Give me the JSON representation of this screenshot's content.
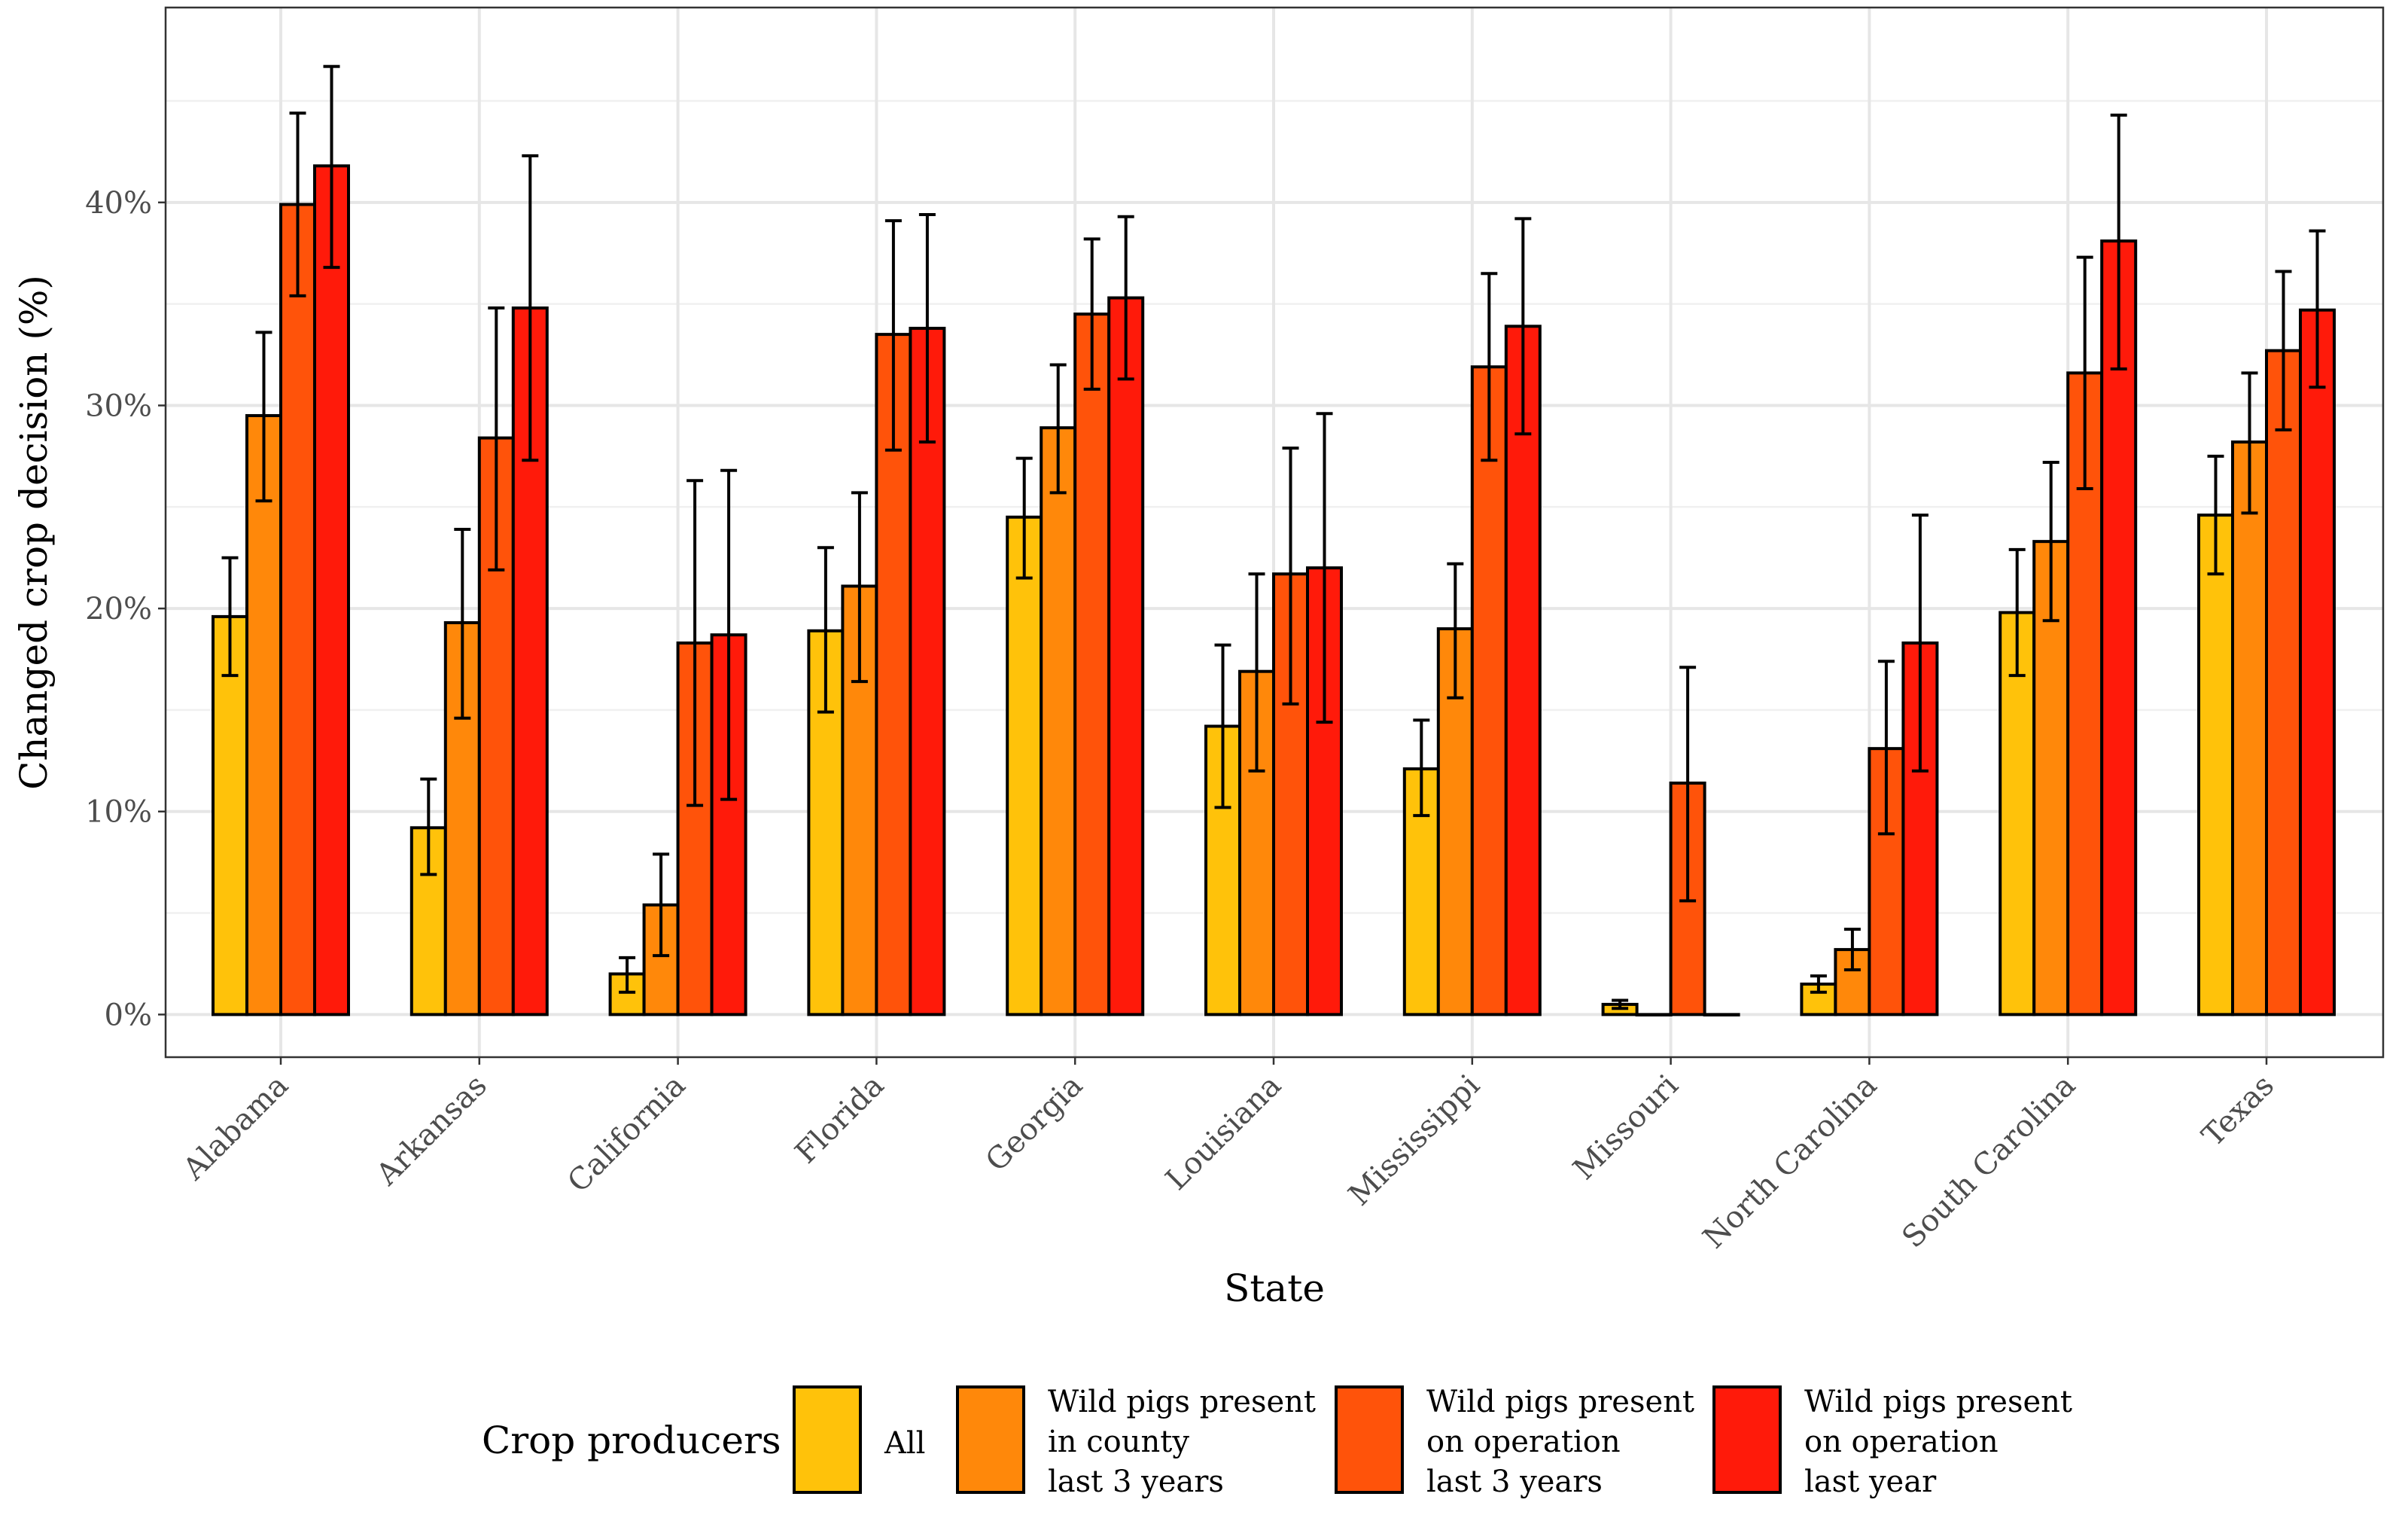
{
  "chart_data": {
    "type": "bar",
    "title": "",
    "xlabel": "State",
    "ylabel": "Changed crop decision (%)",
    "ylim": [
      -2.1,
      49.6
    ],
    "yticks": [
      0,
      10,
      20,
      30,
      40
    ],
    "ytick_labels": [
      "0%",
      "10%",
      "20%",
      "30%",
      "40%"
    ],
    "grid": true,
    "legend_position": "bottom",
    "legend_title": "Crop producers",
    "categories": [
      "Alabama",
      "Arkansas",
      "California",
      "Florida",
      "Georgia",
      "Louisiana",
      "Mississippi",
      "Missouri",
      "North Carolina",
      "South Carolina",
      "Texas"
    ],
    "series": [
      {
        "name": "All",
        "legend_lines": [
          "All"
        ],
        "color": "#FFC20A",
        "values": [
          19.6,
          9.2,
          2.0,
          18.9,
          24.5,
          14.2,
          12.1,
          0.5,
          1.5,
          19.8,
          24.6
        ],
        "lower": [
          16.7,
          6.9,
          1.1,
          14.9,
          21.5,
          10.2,
          9.8,
          0.3,
          1.1,
          16.7,
          21.7
        ],
        "upper": [
          22.5,
          11.6,
          2.8,
          23.0,
          27.4,
          18.2,
          14.5,
          0.7,
          1.9,
          22.9,
          27.5
        ]
      },
      {
        "name": "Wild pigs present in county last 3 years",
        "legend_lines": [
          "Wild pigs present",
          "in county",
          "last 3 years"
        ],
        "color": "#FF880A",
        "values": [
          29.5,
          19.3,
          5.4,
          21.1,
          28.9,
          16.9,
          19.0,
          0,
          3.2,
          23.3,
          28.2
        ],
        "lower": [
          25.3,
          14.6,
          2.9,
          16.4,
          25.7,
          12.0,
          15.6,
          null,
          2.2,
          19.4,
          24.7
        ],
        "upper": [
          33.6,
          23.9,
          7.9,
          25.7,
          32.0,
          21.7,
          22.2,
          null,
          4.2,
          27.2,
          31.6
        ]
      },
      {
        "name": "Wild pigs present on operation last 3 years",
        "legend_lines": [
          "Wild pigs present",
          "on operation",
          "last 3 years"
        ],
        "color": "#FF530A",
        "values": [
          39.9,
          28.4,
          18.3,
          33.5,
          34.5,
          21.7,
          31.9,
          11.4,
          13.1,
          31.6,
          32.7
        ],
        "lower": [
          35.4,
          21.9,
          10.3,
          27.8,
          30.8,
          15.3,
          27.3,
          5.6,
          8.9,
          25.9,
          28.8
        ],
        "upper": [
          44.4,
          34.8,
          26.3,
          39.1,
          38.2,
          27.9,
          36.5,
          17.1,
          17.4,
          37.3,
          36.6
        ]
      },
      {
        "name": "Wild pigs present on operation last year",
        "legend_lines": [
          "Wild pigs present",
          "on operation",
          "last year"
        ],
        "color": "#FF1A0A",
        "values": [
          41.8,
          34.8,
          18.7,
          33.8,
          35.3,
          22.0,
          33.9,
          0,
          18.3,
          38.1,
          34.7
        ],
        "lower": [
          36.8,
          27.3,
          10.6,
          28.2,
          31.3,
          14.4,
          28.6,
          null,
          12.0,
          31.8,
          30.9
        ],
        "upper": [
          46.7,
          42.3,
          26.8,
          39.4,
          39.3,
          29.6,
          39.2,
          null,
          24.6,
          44.3,
          38.6
        ]
      }
    ]
  }
}
